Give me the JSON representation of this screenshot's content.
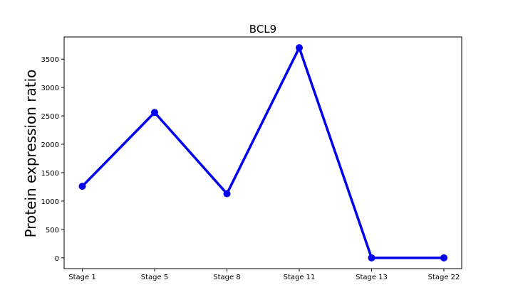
{
  "chart_data": {
    "type": "line",
    "title": "BCL9",
    "xlabel": "",
    "ylabel": "Protein expression ratio",
    "categories": [
      "Stage 1",
      "Stage 5",
      "Stage 8",
      "Stage 11",
      "Stage 13",
      "Stage 22"
    ],
    "series": [
      {
        "name": "BCL9",
        "values": [
          1260,
          2560,
          1130,
          3700,
          0,
          0
        ]
      }
    ],
    "yticks": [
      0,
      500,
      1000,
      1500,
      2000,
      2500,
      3000,
      3500
    ],
    "ylim": [
      -190,
      3890
    ],
    "grid": false,
    "legend": "none",
    "color": "#0000ee"
  }
}
